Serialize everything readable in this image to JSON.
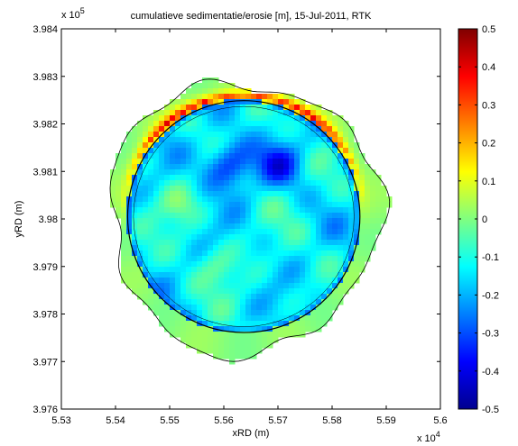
{
  "chart_data": {
    "type": "heatmap",
    "title": "cumulatieve sedimentatie/erosie [m], 15-Jul-2011, RTK",
    "xlabel": "xRD (m)",
    "ylabel": "yRD (m)",
    "x_ticks": [
      "5.53",
      "5.54",
      "5.55",
      "5.56",
      "5.57",
      "5.58",
      "5.59",
      "5.6"
    ],
    "y_ticks": [
      "3.984",
      "3.983",
      "3.982",
      "3.981",
      "3.98",
      "3.979",
      "3.978",
      "3.977",
      "3.976"
    ],
    "x_multiplier": {
      "base": "x 10",
      "exp": "4"
    },
    "y_multiplier": {
      "base": "x 10",
      "exp": "5"
    },
    "xlim": [
      55200,
      56000
    ],
    "ylim": [
      397600,
      398400
    ],
    "colorbar": {
      "ticks": [
        "0.5",
        "0.4",
        "0.3",
        "0.2",
        "0.1",
        "0",
        "-0.1",
        "-0.2",
        "-0.3",
        "-0.4",
        "-0.5"
      ],
      "range": [
        -0.5,
        0.5
      ],
      "colormap": "jet"
    },
    "features": {
      "domain_center": [
        55585,
        398005
      ],
      "background_value": 0,
      "deep_erosion_centers": [
        [
          55555,
          398115
        ],
        [
          55660,
          398115
        ]
      ],
      "sedimentation_ring": "northwest and northeast edges, up to 0.5"
    }
  },
  "colors": {
    "background": "#ffffff",
    "axes_frame": "#000000",
    "jet_low": "#00008f",
    "jet_high": "#800000"
  }
}
